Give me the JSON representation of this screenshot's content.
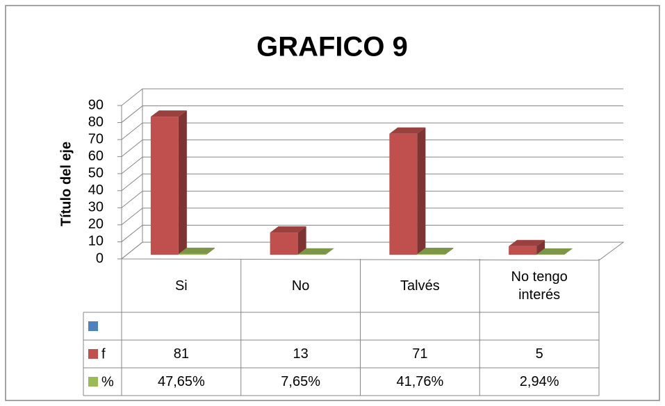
{
  "chart_data": {
    "type": "bar3d",
    "title": "GRAFICO 9",
    "y_label": "Título del eje",
    "categories": [
      "Si",
      "No",
      "Talvés",
      "No tengo interés"
    ],
    "series": [
      {
        "name": null,
        "color": "#4f81bd",
        "values": [
          null,
          null,
          null,
          null
        ]
      },
      {
        "name": "f",
        "color": "#c0504d",
        "values": [
          81,
          13,
          71,
          5
        ]
      },
      {
        "name": "%",
        "color": "#9bbb59",
        "values": [
          0.4765,
          0.0765,
          0.4176,
          0.0294
        ],
        "value_labels": [
          "47,65%",
          "7,65%",
          "41,76%",
          "2,94%"
        ]
      }
    ],
    "ylim": [
      0,
      90
    ],
    "yticks": [
      0,
      10,
      20,
      30,
      40,
      50,
      60,
      70,
      80,
      90
    ],
    "grid": true
  }
}
